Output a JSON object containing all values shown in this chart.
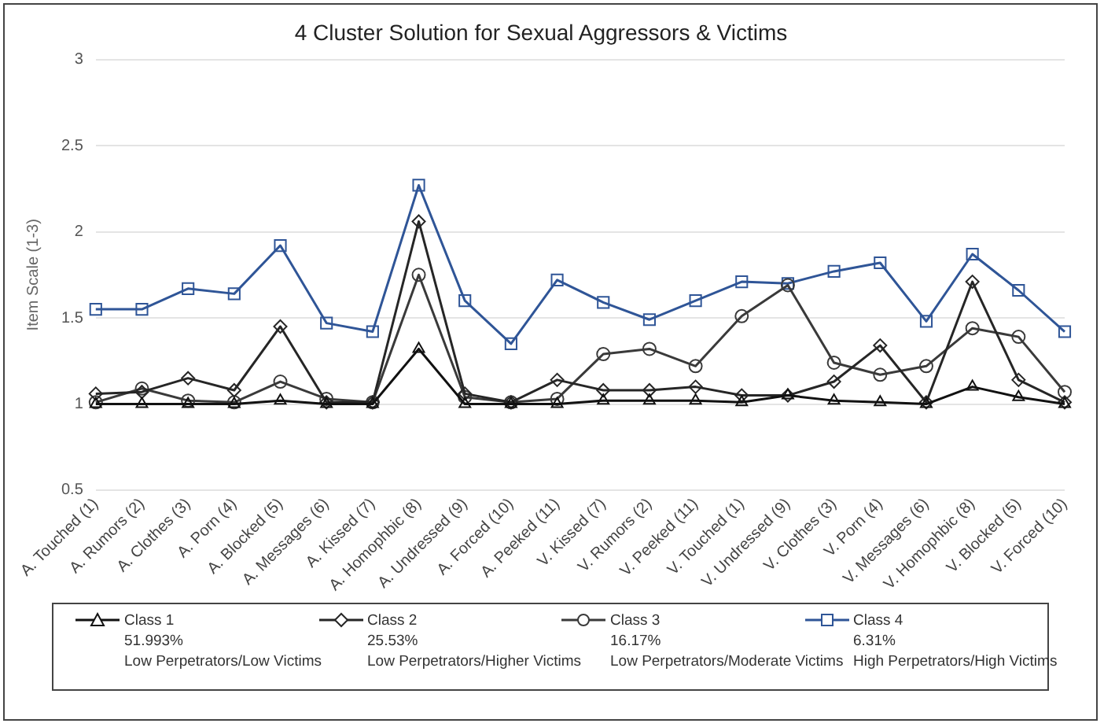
{
  "chart_data": {
    "type": "line",
    "title": "4 Cluster Solution for Sexual Aggressors & Victims",
    "ylabel": "Item Scale (1-3)",
    "categories": [
      "A. Touched (1)",
      "A. Rumors (2)",
      "A. Clothes (3)",
      "A. Porn (4)",
      "A. Blocked (5)",
      "A. Messages (6)",
      "A. Kissed (7)",
      "A. Homophbic (8)",
      "A. Undressed (9)",
      "A. Forced (10)",
      "A. Peeked (11)",
      "V. Kissed (7)",
      "V. Rumors (2)",
      "V. Peeked (11)",
      "V. Touched (1)",
      "V. Undressed (9)",
      "V. Clothes (3)",
      "V. Porn (4)",
      "V. Messages (6)",
      "V. Homophbic (8)",
      "V. Blocked (5)",
      "V. Forced (10)"
    ],
    "series": [
      {
        "name": "Class 1",
        "color": "#111111",
        "marker": "triangle",
        "values": [
          1,
          1,
          1,
          1,
          1.02,
          1,
          1,
          1.32,
          1,
          1,
          1,
          1.02,
          1.02,
          1.02,
          1.01,
          1.05,
          1.02,
          1.01,
          1,
          1.1,
          1.04,
          1
        ]
      },
      {
        "name": "Class 2",
        "color": "#262626",
        "marker": "diamond",
        "values": [
          1.06,
          1.07,
          1.15,
          1.08,
          1.45,
          1.01,
          1.01,
          2.06,
          1.06,
          1.01,
          1.14,
          1.08,
          1.08,
          1.1,
          1.05,
          1.05,
          1.13,
          1.34,
          1.01,
          1.71,
          1.14,
          1.01
        ]
      },
      {
        "name": "Class 3",
        "color": "#3a3a3a",
        "marker": "circle",
        "values": [
          1.01,
          1.09,
          1.02,
          1.01,
          1.13,
          1.03,
          1.01,
          1.75,
          1.04,
          1.01,
          1.03,
          1.29,
          1.32,
          1.22,
          1.51,
          1.69,
          1.24,
          1.17,
          1.22,
          1.44,
          1.39,
          1.07
        ]
      },
      {
        "name": "Class 4",
        "color": "#2f5597",
        "marker": "square",
        "values": [
          1.55,
          1.55,
          1.67,
          1.64,
          1.92,
          1.47,
          1.42,
          2.27,
          1.6,
          1.35,
          1.72,
          1.59,
          1.49,
          1.6,
          1.71,
          1.7,
          1.77,
          1.82,
          1.48,
          1.87,
          1.66,
          1.42
        ]
      }
    ],
    "annotations": [
      "51.993%",
      "Low Perpetrators/Low Victims",
      "25.53%",
      "Low Perpetrators/Higher Victims",
      "16.17%",
      "Low Perpetrators/Moderate Victims",
      "6.31%",
      "High Perpetrators/High Victims"
    ],
    "ylim": [
      0.5,
      3
    ],
    "yticks": [
      0.5,
      1,
      1.5,
      2,
      2.5,
      3
    ],
    "grid": "y",
    "legend": "bottom",
    "line_style": "solid"
  }
}
